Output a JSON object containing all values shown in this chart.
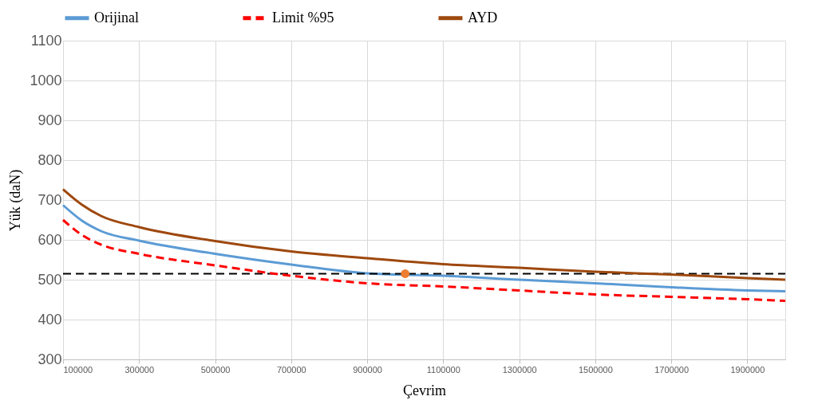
{
  "chart_data": {
    "type": "line",
    "xlabel": "Çevrim",
    "ylabel": "Yük (daN)",
    "xlim": [
      100000,
      2000000
    ],
    "ylim": [
      300,
      1100
    ],
    "xticks": [
      100000,
      300000,
      500000,
      700000,
      900000,
      1100000,
      1300000,
      1500000,
      1700000,
      1900000
    ],
    "yticks": [
      300,
      400,
      500,
      600,
      700,
      800,
      900,
      1000,
      1100
    ],
    "grid": true,
    "legend": "top",
    "marker": "none",
    "x": [
      100000,
      150000,
      200000,
      300000,
      500000,
      700000,
      900000,
      1100000,
      1300000,
      1500000,
      1700000,
      1900000,
      2000000
    ],
    "series": [
      {
        "name": "Orijinal",
        "color": "#5b9bd5",
        "line_style": "solid",
        "values": [
          687,
          648,
          622,
          598,
          565,
          538,
          516,
          510,
          500,
          491,
          481,
          473,
          471
        ]
      },
      {
        "name": "Limit %95",
        "color": "#ff0000",
        "line_style": "dashed",
        "values": [
          650,
          612,
          588,
          565,
          536,
          510,
          491,
          483,
          473,
          463,
          457,
          451,
          447
        ]
      },
      {
        "name": "AYD",
        "color": "#9e480e",
        "line_style": "solid",
        "values": [
          727,
          688,
          660,
          632,
          597,
          571,
          554,
          539,
          530,
          520,
          513,
          504,
          500
        ]
      },
      {
        "type": "scatter",
        "color": "#ed7d31",
        "marker": "circle",
        "x": [
          1000000
        ],
        "values": [
          515
        ]
      }
    ],
    "ref_lines": [
      {
        "axis": "y",
        "value": 515,
        "color": "#000000",
        "line_style": "dashed"
      }
    ]
  }
}
